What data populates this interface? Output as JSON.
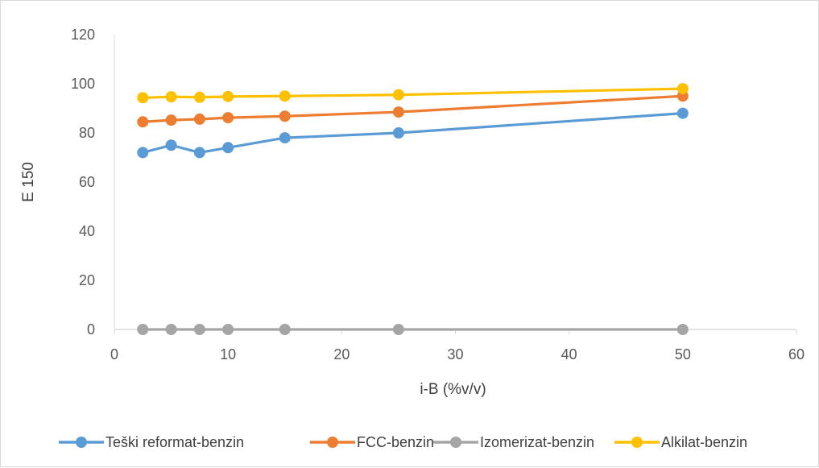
{
  "chart_data": {
    "type": "line",
    "title": "",
    "xlabel": "i-B (%v/v)",
    "ylabel": "E 150",
    "xlim": [
      0,
      60
    ],
    "ylim": [
      0,
      120
    ],
    "x_ticks": [
      "0",
      "10",
      "20",
      "30",
      "40",
      "50",
      "60"
    ],
    "y_ticks": [
      "0",
      "20",
      "40",
      "60",
      "80",
      "100",
      "120"
    ],
    "x": [
      2.5,
      5,
      7.5,
      10,
      15,
      25,
      50
    ],
    "grid": false,
    "legend_position": "bottom",
    "series": [
      {
        "name": "Teški reformat-benzin",
        "color": "#5b9bd5",
        "values": [
          72,
          75,
          72,
          74,
          78,
          80,
          88
        ]
      },
      {
        "name": "FCC-benzin",
        "color": "#ed7d31",
        "values": [
          84.5,
          85.2,
          85.6,
          86.2,
          86.8,
          88.5,
          95
        ]
      },
      {
        "name": "Izomerizat-benzin",
        "color": "#a5a5a5",
        "values": [
          0,
          0,
          0,
          0,
          0,
          0,
          0
        ]
      },
      {
        "name": "Alkilat-benzin",
        "color": "#ffc000",
        "values": [
          94.3,
          94.7,
          94.5,
          94.8,
          95,
          95.5,
          98
        ]
      }
    ]
  }
}
